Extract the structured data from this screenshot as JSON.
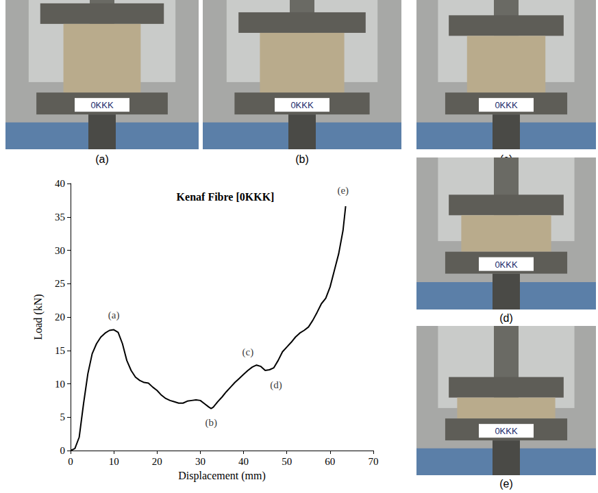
{
  "chart_data": {
    "type": "line",
    "title": "Kenaf Fibre [0KKK]",
    "x_label": "Displacement (mm)",
    "y_label": "Load (kN)",
    "xlim": [
      0,
      70
    ],
    "xticks": [
      0,
      10,
      20,
      30,
      40,
      50,
      60,
      70
    ],
    "ylim": [
      0,
      40
    ],
    "yticks": [
      0,
      5,
      10,
      15,
      20,
      25,
      30,
      35,
      40
    ],
    "grid": false,
    "series": [
      {
        "name": "Kenaf Fibre [0KKK]",
        "color": "#000000",
        "x": [
          0,
          1,
          2,
          3,
          4,
          5,
          6,
          7,
          8,
          9,
          10,
          11,
          12,
          13,
          14,
          15,
          16,
          17,
          18,
          19,
          20,
          21,
          22,
          23,
          24,
          25,
          26,
          27,
          28,
          29,
          30,
          31,
          32,
          32.5,
          33,
          34,
          35,
          36,
          37,
          38,
          39,
          40,
          41,
          42,
          43,
          44,
          45,
          46,
          47,
          48,
          49,
          50,
          51,
          52,
          53,
          54,
          55,
          56,
          57,
          58,
          59,
          60,
          61,
          62,
          63,
          63.6
        ],
        "values": [
          0,
          0.3,
          2,
          7,
          11.5,
          14.5,
          16,
          17,
          17.6,
          18,
          18.1,
          17.7,
          16,
          13.5,
          12,
          11,
          10.5,
          10.2,
          10.1,
          9.5,
          9,
          8.3,
          7.8,
          7.5,
          7.3,
          7.1,
          7.1,
          7.4,
          7.5,
          7.6,
          7.5,
          7,
          6.5,
          6.3,
          6.5,
          7.3,
          8,
          8.8,
          9.5,
          10.2,
          10.8,
          11.4,
          12,
          12.5,
          12.8,
          12.6,
          12,
          12.1,
          12.4,
          13.5,
          14.8,
          15.5,
          16.2,
          17,
          17.6,
          18,
          18.5,
          19.5,
          20.7,
          22,
          22.8,
          24.5,
          27,
          29.5,
          33,
          36.6
        ]
      }
    ],
    "annotations": [
      {
        "text": "(a)",
        "x": 10,
        "y": 20.3
      },
      {
        "text": "(b)",
        "x": 32.5,
        "y": 4.2
      },
      {
        "text": "(c)",
        "x": 41,
        "y": 14.8
      },
      {
        "text": "(d)",
        "x": 47.5,
        "y": 9.8
      },
      {
        "text": "(e)",
        "x": 63,
        "y": 39
      }
    ]
  },
  "photos": [
    {
      "caption": "(a)",
      "specimen_label": "0KKK"
    },
    {
      "caption": "(b)",
      "specimen_label": "0KKK"
    },
    {
      "caption": "(c)",
      "specimen_label": "0KKK"
    },
    {
      "caption": "(d)",
      "specimen_label": "0KKK"
    },
    {
      "caption": "(e)",
      "specimen_label": "0KKK"
    }
  ]
}
